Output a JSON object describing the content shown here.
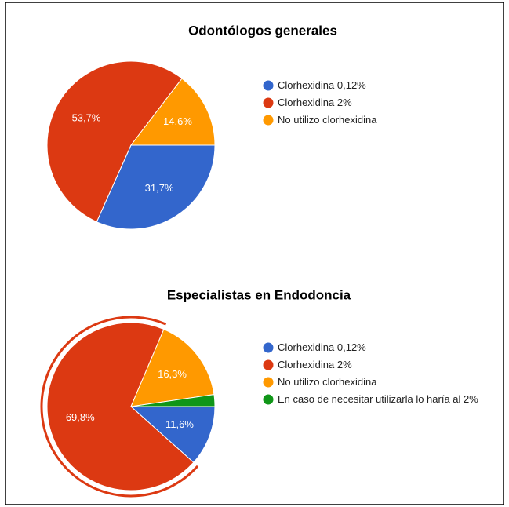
{
  "chart_data": [
    {
      "type": "pie",
      "title": "Odontólogos generales",
      "categories": [
        "Clorhexidina 0,12%",
        "Clorhexidina 2%",
        "No utilizo clorhexidina"
      ],
      "values": [
        31.7,
        53.7,
        14.6
      ],
      "value_labels": [
        "31,7%",
        "53,7%",
        "14,6%"
      ],
      "colors": [
        "#3366cc",
        "#dc3912",
        "#ff9900"
      ],
      "legend": "right"
    },
    {
      "type": "pie",
      "title": "Especialistas en Endodoncia",
      "categories": [
        "Clorhexidina 0,12%",
        "Clorhexidina 2%",
        "No utilizo clorhexidina",
        "En caso de necesitar utilizarla lo haría al 2%"
      ],
      "values": [
        11.6,
        69.8,
        16.3,
        2.3
      ],
      "value_labels": [
        "11,6%",
        "69,8%",
        "16,3%",
        null
      ],
      "colors": [
        "#3366cc",
        "#dc3912",
        "#ff9900",
        "#109618"
      ],
      "legend": "right",
      "selected": 1
    }
  ]
}
